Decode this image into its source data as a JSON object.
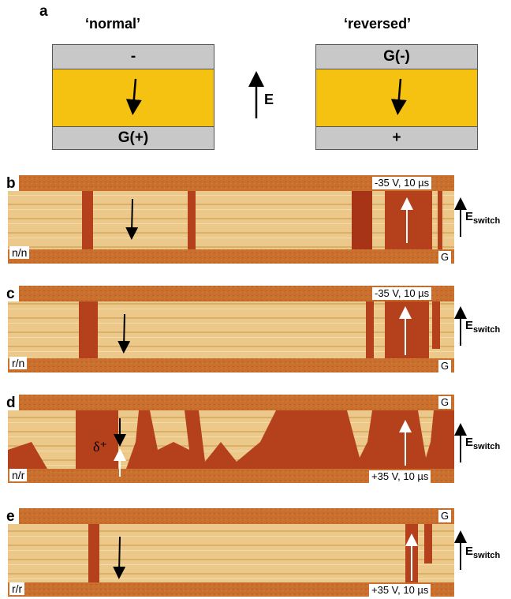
{
  "panel_a": {
    "letter": "a",
    "left_title": "‘normal’",
    "right_title": "‘reversed’",
    "left_top_plate": "-",
    "left_bottom_plate": "G(+)",
    "right_top_plate": "G(-)",
    "right_bottom_plate": "+",
    "field_label": "E"
  },
  "panels": [
    {
      "letter": "b",
      "top_label": "-35 V, 10 µs",
      "bottom_label": "G",
      "side_label": "n/n"
    },
    {
      "letter": "c",
      "top_label": "-35 V, 10 µs",
      "bottom_label": "G",
      "side_label": "r/n"
    },
    {
      "letter": "d",
      "top_label": "G",
      "bottom_label": "+35 V, 10 µs",
      "side_label": "n/r",
      "annotation": "δ⁺"
    },
    {
      "letter": "e",
      "top_label": "G",
      "bottom_label": "+35 V, 10 µs",
      "side_label": "r/r"
    }
  ],
  "switch_field": {
    "main": "E",
    "sub": "switch"
  },
  "colors": {
    "film": "#f6c211",
    "electrode": "#c8c8c8",
    "domain_dark": "#b5401c",
    "domain_light": "#eac57e"
  }
}
